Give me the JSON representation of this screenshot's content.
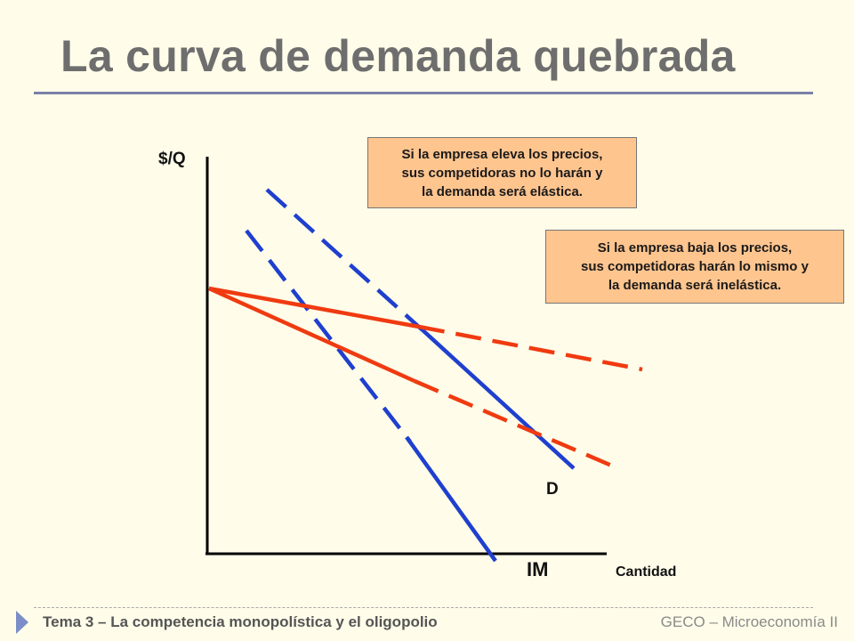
{
  "slide": {
    "title": "La curva de demanda quebrada"
  },
  "diagram": {
    "y_axis_label": "$/Q",
    "x_axis_label": "Cantidad",
    "demand_label": "D",
    "mr_label": "IM",
    "callout_raise": [
      "Si la empresa eleva los precios,",
      "sus competidoras no lo harán y",
      "la demanda será elástica."
    ],
    "callout_lower": [
      "Si la empresa baja los precios,",
      "sus competidoras harán lo mismo y",
      "la demanda será inelástica."
    ],
    "colors": {
      "demand_lines": "#1f3fcf",
      "revenue_lines": "#f03a10",
      "callout_fill": "#ffc58f",
      "axis": "#000000"
    }
  },
  "footer": {
    "left": "Tema 3 –  La competencia monopolística  y el oligopolio",
    "right": "GECO – Microeconomía II"
  }
}
